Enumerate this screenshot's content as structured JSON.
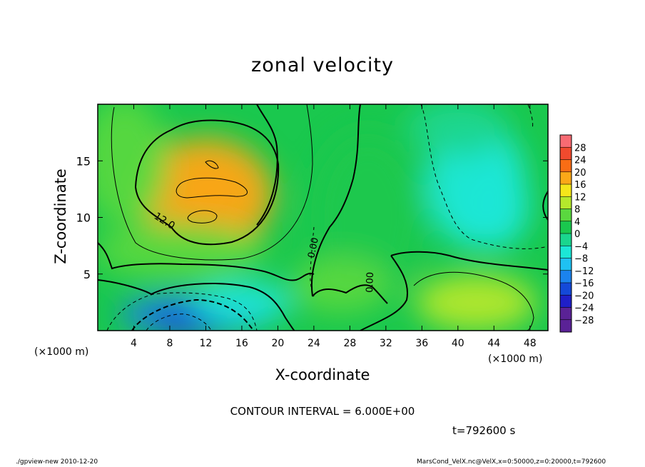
{
  "chart_data": {
    "type": "heatmap",
    "title": "zonal velocity",
    "xlabel": "X-coordinate",
    "ylabel": "Z-coordinate",
    "x_unit": "(×1000 m)",
    "y_unit": "(×1000 m)",
    "xlim": [
      0,
      50
    ],
    "ylim": [
      0,
      20
    ],
    "xticks": [
      4,
      8,
      12,
      16,
      20,
      24,
      28,
      32,
      36,
      40,
      44,
      48
    ],
    "yticks": [
      5,
      10,
      15
    ],
    "colorbar": {
      "levels": [
        28,
        24,
        20,
        16,
        12,
        8,
        4,
        0,
        -4,
        -8,
        -12,
        -16,
        -20,
        -24,
        -28
      ],
      "colors": {
        "28": "#f86b73",
        "24": "#f14a2e",
        "20": "#f86d15",
        "16": "#fba818",
        "12": "#f4e61a",
        "8": "#b5e82c",
        "4": "#5ad83f",
        "0": "#1ac84e",
        "-4": "#1ad68e",
        "-8": "#1ce7d6",
        "-12": "#1fc1f2",
        "-16": "#1b83ee",
        "-20": "#1449d8",
        "-24": "#1f1fc8",
        "-28": "#5a2296"
      }
    },
    "contour_interval": "CONTOUR INTERVAL = 6.000E+00",
    "contour_labels": [
      "12.0",
      "0.00",
      "0.00"
    ],
    "features": [
      {
        "x": 12.5,
        "z": 12.2,
        "value": 19
      },
      {
        "x": 12,
        "z": 12,
        "value": 16
      },
      {
        "x": 9,
        "z": 7,
        "value": 6
      },
      {
        "x": 3,
        "z": 15,
        "value": 3
      },
      {
        "x": 11,
        "z": 1.4,
        "value": -16
      },
      {
        "x": 10,
        "z": 0.6,
        "value": -21
      },
      {
        "x": 16,
        "z": 2.5,
        "value": -8
      },
      {
        "x": 42,
        "z": 13,
        "value": -8
      },
      {
        "x": 44,
        "z": 11,
        "value": -7
      },
      {
        "x": 42,
        "z": 2.5,
        "value": 7
      },
      {
        "x": 30,
        "z": 10,
        "value": 1
      },
      {
        "x": 27,
        "z": 4,
        "value": 3
      },
      {
        "x": 40,
        "z": 18,
        "value": -4
      }
    ]
  },
  "annotations": {
    "time": "t=792600 s",
    "footer_left": "./gpview-new   2010-12-20",
    "footer_right": "MarsCond_VelX.nc@VelX,x=0:50000,z=0:20000,t=792600"
  }
}
